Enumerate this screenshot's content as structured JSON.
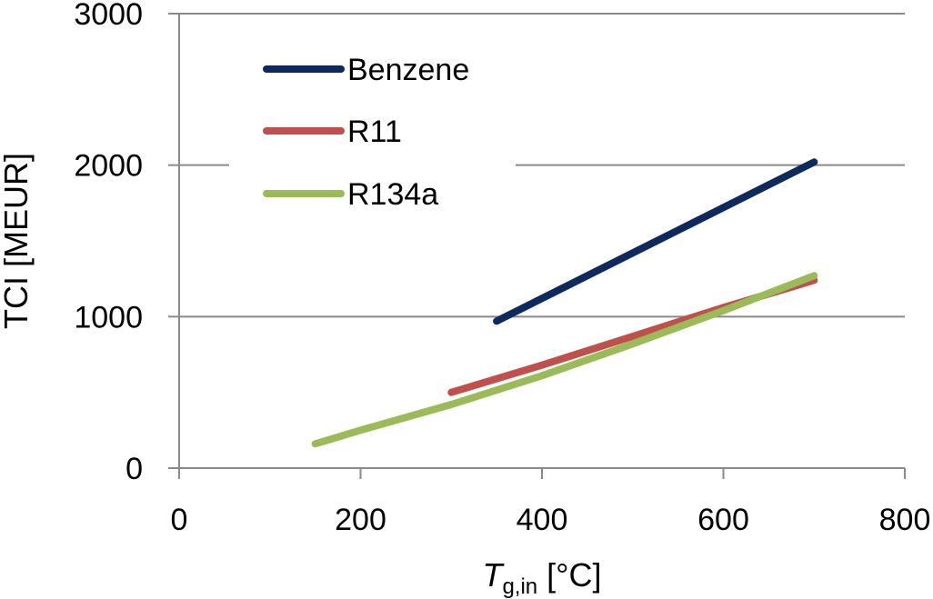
{
  "chart_data": {
    "type": "line",
    "title": "",
    "xlabel": {
      "symbol": "T",
      "subscript": "g,in",
      "unit": " [°C]"
    },
    "ylabel": "TCI  [MEUR]",
    "xlim": [
      0,
      800
    ],
    "ylim": [
      0,
      3000
    ],
    "xticks": [
      0,
      200,
      400,
      600,
      800
    ],
    "yticks": [
      0,
      1000,
      2000,
      3000
    ],
    "grid": "horizontal",
    "legend_position": "top-left",
    "series": [
      {
        "name": "Benzene",
        "color": "#0e2a5c",
        "x": [
          350,
          700
        ],
        "y": [
          970,
          2020
        ]
      },
      {
        "name": "R11",
        "color": "#c0504d",
        "x": [
          300,
          400,
          500,
          600,
          700
        ],
        "y": [
          500,
          680,
          870,
          1060,
          1240
        ]
      },
      {
        "name": "R134a",
        "color": "#9bbb59",
        "x": [
          150,
          200,
          300,
          400,
          500,
          600,
          700
        ],
        "y": [
          160,
          250,
          420,
          610,
          820,
          1040,
          1270
        ]
      }
    ]
  }
}
